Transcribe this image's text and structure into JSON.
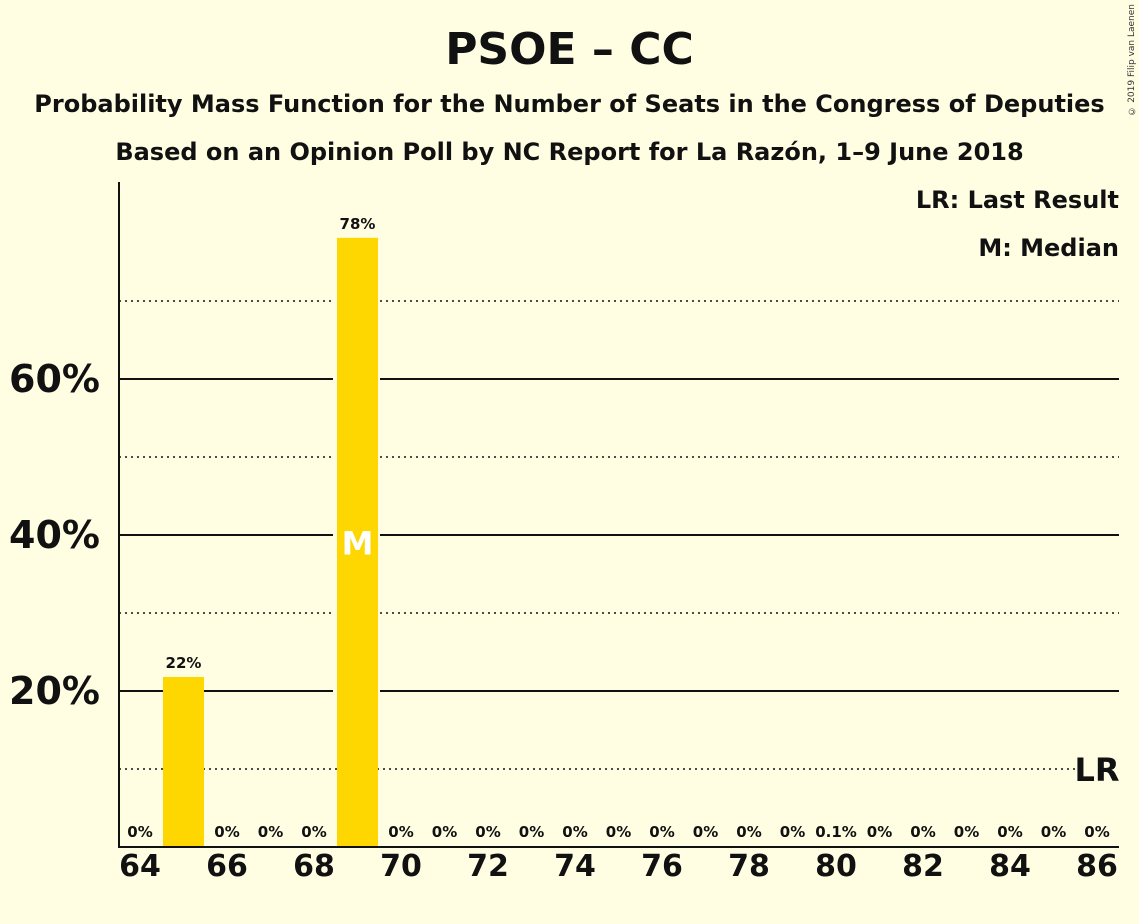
{
  "colors": {
    "background": "#FFFEE3",
    "bar": "#FFD700",
    "text": "#111111",
    "median_marker": "#FFFFFF"
  },
  "copyright": "© 2019 Filip van Laenen",
  "chart_data": {
    "type": "bar",
    "title": "PSOE – CC",
    "subtitle": "Probability Mass Function for the Number of Seats in the Congress of Deputies",
    "subtitle2": "Based on an Opinion Poll by NC Report for La Razón, 1–9 June 2018",
    "xlabel": "",
    "ylabel": "",
    "ylim": [
      0,
      85
    ],
    "y_major_ticks": [
      20,
      40,
      60
    ],
    "y_major_tick_labels": [
      "20%",
      "40%",
      "60%"
    ],
    "y_minor_ticks": [
      10,
      30,
      50,
      70
    ],
    "x_tick_values": [
      64,
      66,
      68,
      70,
      72,
      74,
      76,
      78,
      80,
      82,
      84,
      86
    ],
    "x_tick_labels": [
      "64",
      "66",
      "68",
      "70",
      "72",
      "74",
      "76",
      "78",
      "80",
      "82",
      "84",
      "86"
    ],
    "categories": [
      64,
      65,
      66,
      67,
      68,
      69,
      70,
      71,
      72,
      73,
      74,
      75,
      76,
      77,
      78,
      79,
      80,
      81,
      82,
      83,
      84,
      85,
      86
    ],
    "values": [
      0,
      21.8,
      0,
      0,
      0,
      78.1,
      0,
      0,
      0,
      0,
      0,
      0,
      0,
      0,
      0,
      0,
      0.1,
      0,
      0,
      0,
      0,
      0,
      0
    ],
    "value_labels": [
      "0%",
      "22%",
      "0%",
      "0%",
      "0%",
      "78%",
      "0%",
      "0%",
      "0%",
      "0%",
      "0%",
      "0%",
      "0%",
      "0%",
      "0%",
      "0%",
      "0.1%",
      "0%",
      "0%",
      "0%",
      "0%",
      "0%",
      "0%"
    ],
    "median_seat": 69,
    "median_label": "M",
    "last_result_seat": 86,
    "last_result_label": "LR",
    "legend": {
      "last_result": "LR: Last Result",
      "median": "M: Median"
    }
  }
}
